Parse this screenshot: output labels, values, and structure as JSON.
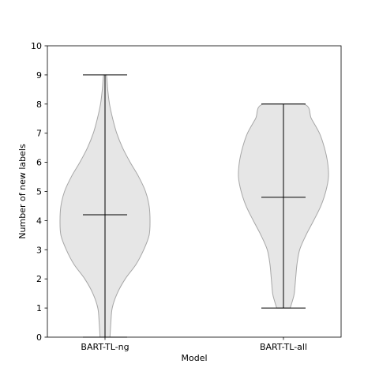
{
  "chart_data": {
    "type": "violin",
    "title": "",
    "xlabel": "Model",
    "ylabel": "Number of new labels",
    "ylim": [
      0,
      10
    ],
    "yticks": [
      0,
      1,
      2,
      3,
      4,
      5,
      6,
      7,
      8,
      9,
      10
    ],
    "categories": [
      "BART-TL-ng",
      "BART-TL-all"
    ],
    "series": [
      {
        "category": "BART-TL-ng",
        "min": 0,
        "max": 9,
        "mean": 4.2,
        "density": [
          [
            0.0,
            0.11
          ],
          [
            0.5,
            0.13
          ],
          [
            1.0,
            0.16
          ],
          [
            1.5,
            0.27
          ],
          [
            2.0,
            0.45
          ],
          [
            2.5,
            0.69
          ],
          [
            3.0,
            0.86
          ],
          [
            3.5,
            0.98
          ],
          [
            4.0,
            1.0
          ],
          [
            4.5,
            0.98
          ],
          [
            5.0,
            0.9
          ],
          [
            5.5,
            0.75
          ],
          [
            6.0,
            0.56
          ],
          [
            6.5,
            0.39
          ],
          [
            7.0,
            0.26
          ],
          [
            7.5,
            0.17
          ],
          [
            8.0,
            0.1
          ],
          [
            8.5,
            0.06
          ],
          [
            9.0,
            0.03
          ]
        ]
      },
      {
        "category": "BART-TL-all",
        "min": 1,
        "max": 8,
        "mean": 4.8,
        "density": [
          [
            1.0,
            0.15
          ],
          [
            1.25,
            0.2
          ],
          [
            1.5,
            0.24
          ],
          [
            2.0,
            0.27
          ],
          [
            2.5,
            0.3
          ],
          [
            3.0,
            0.36
          ],
          [
            3.5,
            0.5
          ],
          [
            4.0,
            0.67
          ],
          [
            4.5,
            0.83
          ],
          [
            5.0,
            0.94
          ],
          [
            5.5,
            1.0
          ],
          [
            6.0,
            0.98
          ],
          [
            6.5,
            0.91
          ],
          [
            7.0,
            0.8
          ],
          [
            7.5,
            0.62
          ],
          [
            8.0,
            0.45
          ]
        ]
      }
    ],
    "colors": {
      "body_fill": "#e6e6e6",
      "body_edge": "#a6a6a6",
      "lines": "#000000"
    },
    "grid": false,
    "legend": "none"
  }
}
